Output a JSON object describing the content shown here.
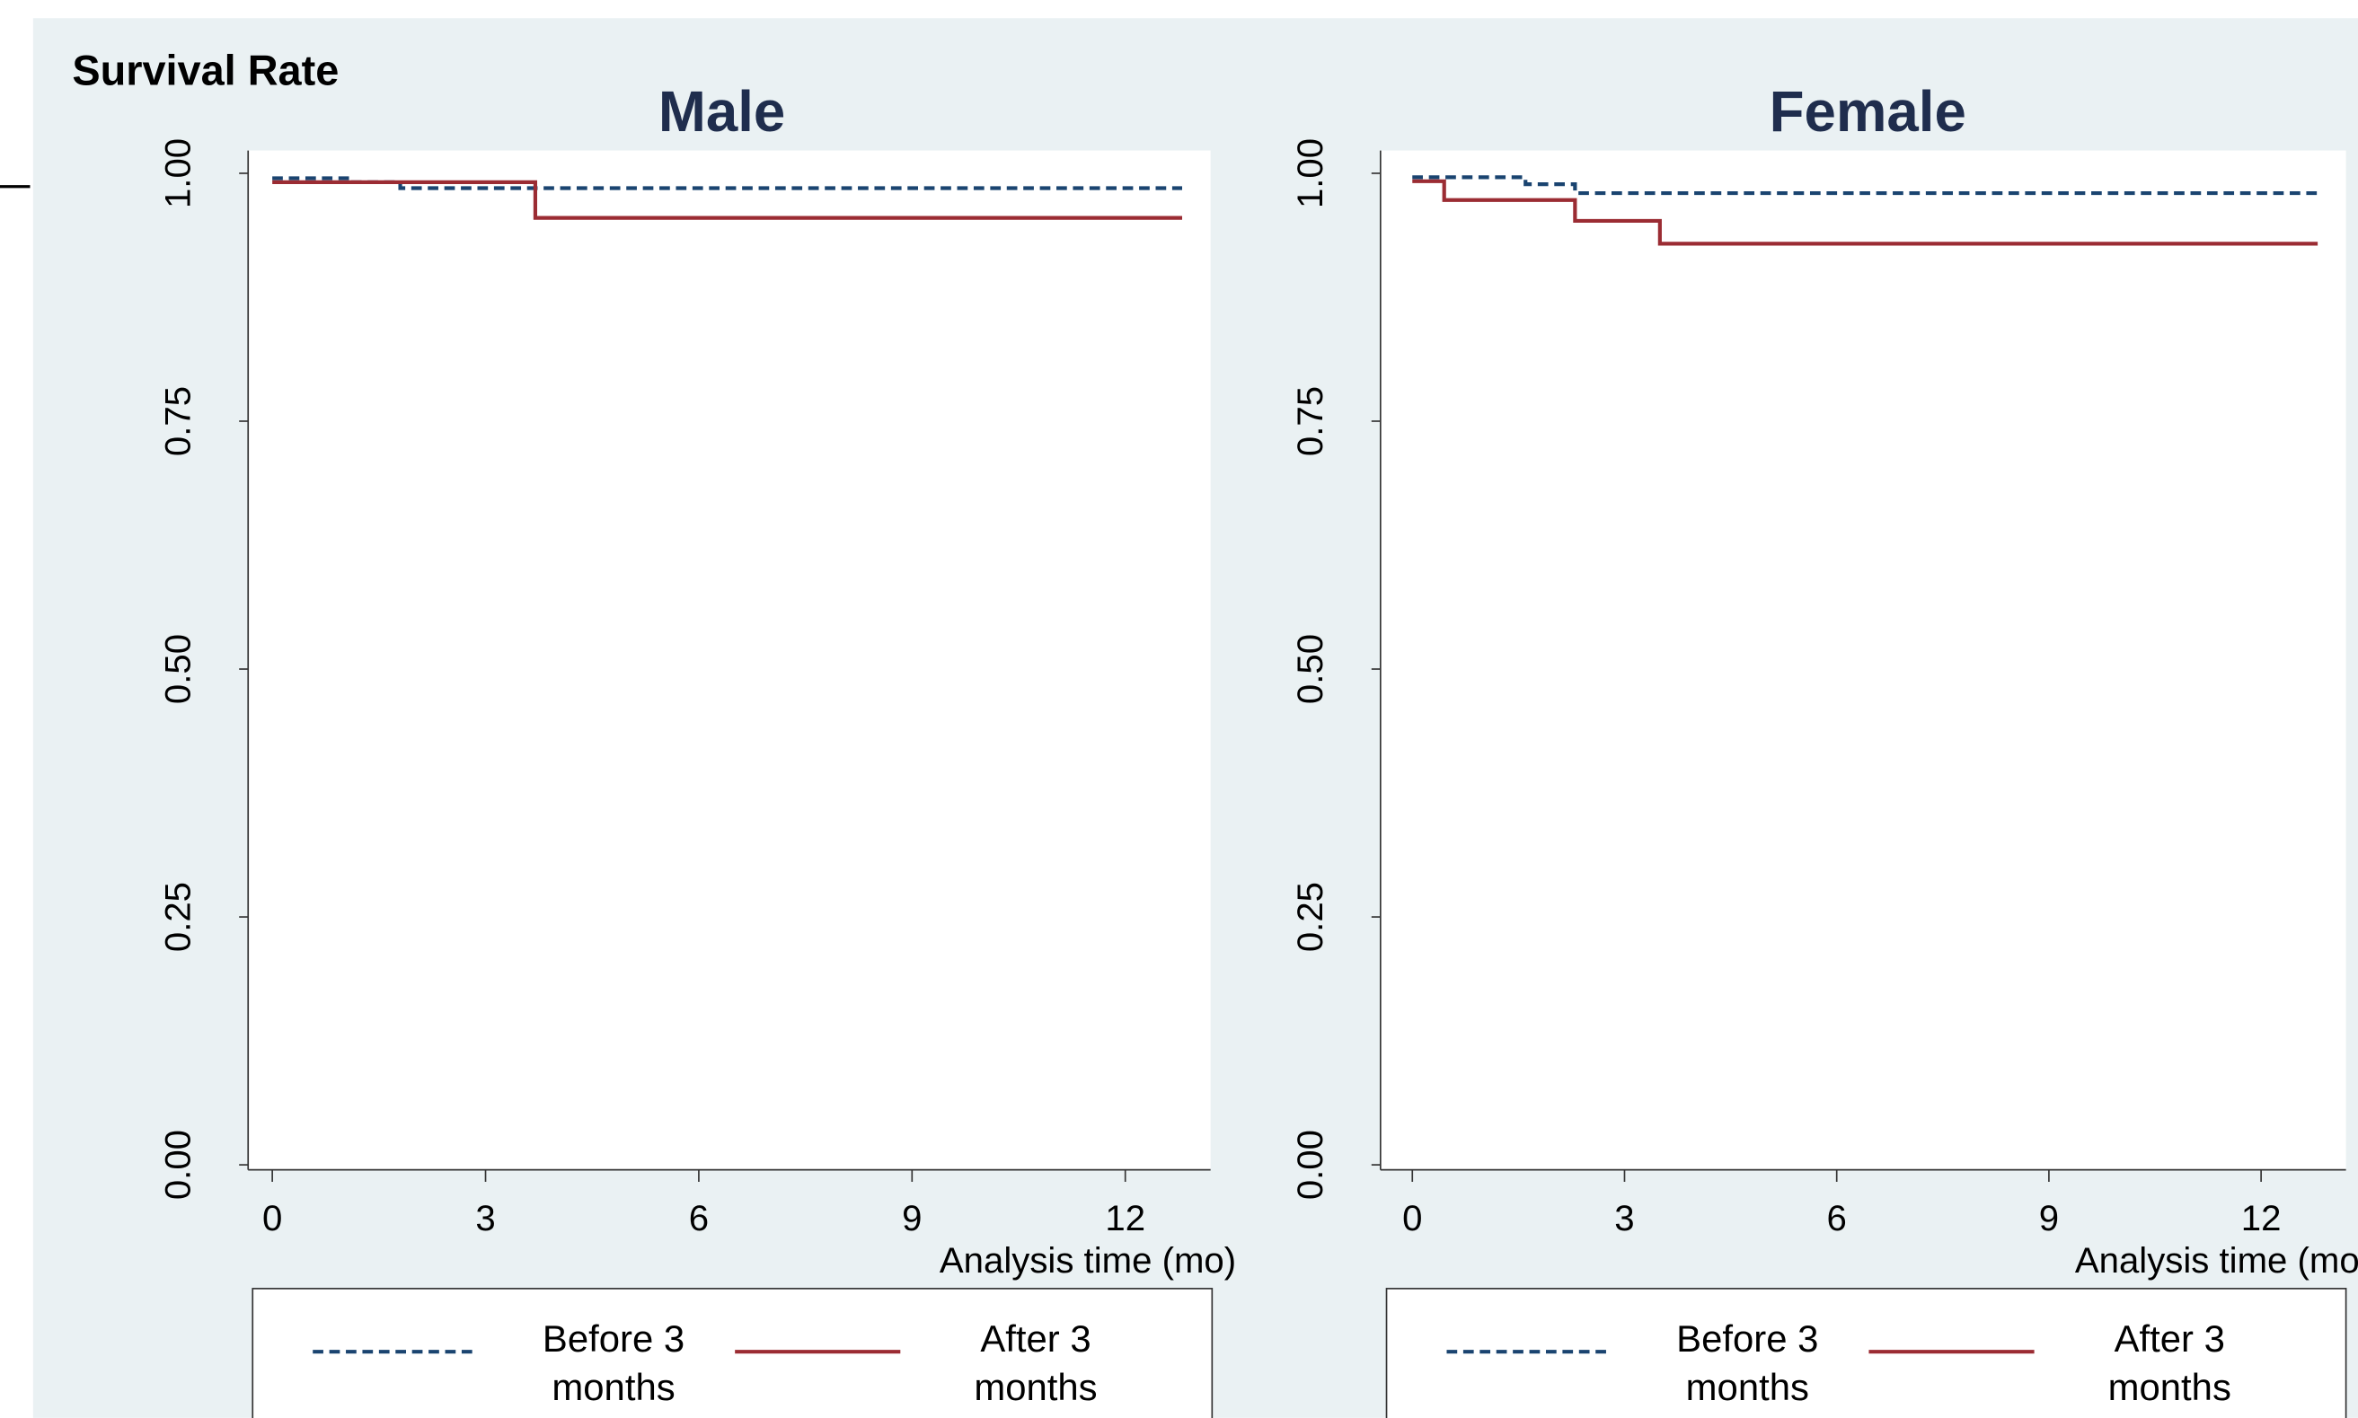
{
  "title": "Survival Rate",
  "chart_data": [
    {
      "type": "step",
      "title": "Male",
      "xlabel": "Analysis time (mo)",
      "xlim": [
        -0.34,
        13.2
      ],
      "ylim": [
        -0.005,
        1.023
      ],
      "xticks": [
        0,
        3,
        6,
        9,
        12
      ],
      "yticks": [
        {
          "value": 0,
          "label": "0.00"
        },
        {
          "value": 0.25,
          "label": "0.25"
        },
        {
          "value": 0.5,
          "label": "0.50"
        },
        {
          "value": 0.75,
          "label": "0.75"
        },
        {
          "value": 1,
          "label": "1.00"
        }
      ],
      "legend": "bottom",
      "series": [
        {
          "name": "Before 3 months",
          "color": "#1a4470",
          "linestyle": "dashed",
          "x": [
            0,
            1.1,
            1.8,
            12.8
          ],
          "values": [
            0.995,
            0.991,
            0.985,
            0.985
          ]
        },
        {
          "name": "After 3 months",
          "color": "#9b2c33",
          "linestyle": "solid",
          "x": [
            0,
            3.7,
            12.8
          ],
          "values": [
            0.991,
            0.955,
            0.955
          ]
        }
      ]
    },
    {
      "type": "step",
      "title": "Female",
      "xlabel": "Analysis time (mo)",
      "xlim": [
        -0.45,
        13.2
      ],
      "ylim": [
        -0.005,
        1.023
      ],
      "xticks": [
        0,
        3,
        6,
        9,
        12
      ],
      "yticks": [
        {
          "value": 0,
          "label": "0.00"
        },
        {
          "value": 0.25,
          "label": "0.25"
        },
        {
          "value": 0.5,
          "label": "0.50"
        },
        {
          "value": 0.75,
          "label": "0.75"
        },
        {
          "value": 1,
          "label": "1.00"
        }
      ],
      "legend": "bottom",
      "series": [
        {
          "name": "Before 3 months",
          "color": "#1a4470",
          "linestyle": "dashed",
          "x": [
            0,
            1.6,
            2.3,
            12.8
          ],
          "values": [
            0.996,
            0.989,
            0.98,
            0.98
          ]
        },
        {
          "name": "After 3 months",
          "color": "#9b2c33",
          "linestyle": "solid",
          "x": [
            0,
            0.45,
            2.3,
            3.5,
            12.8
          ],
          "values": [
            0.992,
            0.973,
            0.952,
            0.929,
            0.929
          ]
        }
      ]
    }
  ]
}
